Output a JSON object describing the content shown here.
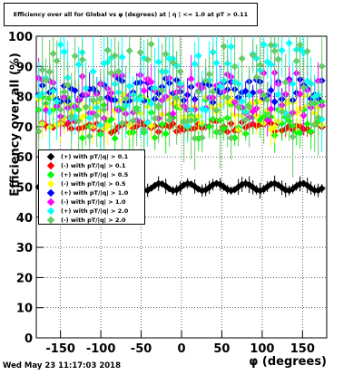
{
  "title": "Efficiency over all for Global vs φ (degrees) at | η | <= 1.0 at pT > 0.11",
  "timestamp": "Wed May 23 11:17:03 2018",
  "chart_data": {
    "type": "scatter",
    "xlabel": "φ (degrees)",
    "ylabel": "Efficiency over all (%)",
    "xlim": [
      -180,
      180
    ],
    "ylim": [
      0,
      100
    ],
    "x_ticks": [
      -150,
      -100,
      -50,
      0,
      50,
      100,
      150
    ],
    "y_ticks": [
      0,
      10,
      20,
      30,
      40,
      50,
      60,
      70,
      80,
      90,
      100
    ],
    "grid": true,
    "legend_position": "left-middle",
    "series": [
      {
        "name": "(+) with pT/|q| > 0.1",
        "color": "#000000",
        "baseline": 50,
        "spread": 2,
        "errbar": 2,
        "seed": 11
      },
      {
        "name": "(-) with pT/|q| > 0.1",
        "color": "#ff0000",
        "baseline": 70,
        "spread": 2,
        "errbar": 2,
        "seed": 23
      },
      {
        "name": "(+) with pT/|q| > 0.5",
        "color": "#00ff00",
        "baseline": 73,
        "spread": 7,
        "errbar": 5,
        "seed": 37
      },
      {
        "name": "(-) with pT/|q| > 0.5",
        "color": "#ffff00",
        "baseline": 75,
        "spread": 6,
        "errbar": 5,
        "seed": 41
      },
      {
        "name": "(+) with pT/|q| > 1.0",
        "color": "#0000ff",
        "baseline": 82,
        "spread": 4,
        "errbar": 4,
        "seed": 53
      },
      {
        "name": "(-) with pT/|q| > 1.0",
        "color": "#ff00ff",
        "baseline": 80,
        "spread": 8,
        "errbar": 6,
        "seed": 67
      },
      {
        "name": "(+) with pT/|q| > 2.0",
        "color": "#00ffff",
        "baseline": 84,
        "spread": 14,
        "errbar": 10,
        "seed": 79
      },
      {
        "name": "(-) with pT/|q| > 2.0",
        "color": "#66cc66",
        "baseline": 82,
        "spread": 16,
        "errbar": 12,
        "seed": 97
      }
    ]
  }
}
